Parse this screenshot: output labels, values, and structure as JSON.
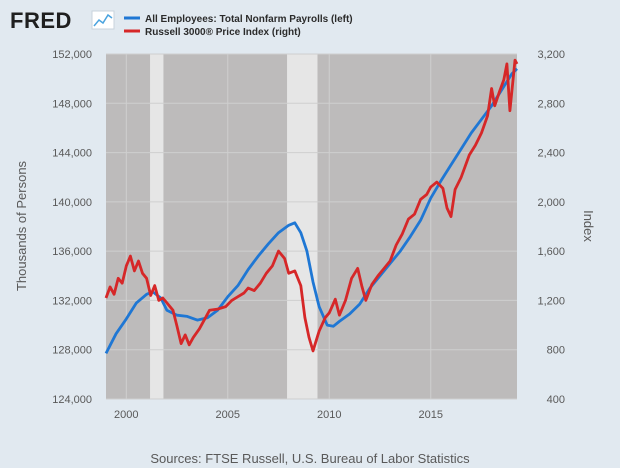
{
  "logo": {
    "text": "FRED"
  },
  "chart_data": {
    "type": "line",
    "title": "",
    "x_range": [
      1999.0,
      2019.25
    ],
    "x_ticks": [
      2000,
      2005,
      2010,
      2015
    ],
    "x_tick_labels": [
      "2000",
      "2005",
      "2010",
      "2015"
    ],
    "recessions": [
      [
        2001.17,
        2001.83
      ],
      [
        2007.92,
        2009.42
      ]
    ],
    "grid": true,
    "legend_position": "top-left",
    "left_axis": {
      "label": "Thousands of Persons",
      "range": [
        124000,
        152000
      ],
      "ticks": [
        124000,
        128000,
        132000,
        136000,
        140000,
        144000,
        148000,
        152000
      ],
      "tick_labels": [
        "124,000",
        "128,000",
        "132,000",
        "136,000",
        "140,000",
        "144,000",
        "148,000",
        "152,000"
      ]
    },
    "right_axis": {
      "label": "Index",
      "range": [
        400,
        3200
      ],
      "ticks": [
        400,
        800,
        1200,
        1600,
        2000,
        2400,
        2800,
        3200
      ],
      "tick_labels": [
        "400",
        "800",
        "1,200",
        "1,600",
        "2,000",
        "2,400",
        "2,800",
        "3,200"
      ]
    },
    "series": [
      {
        "name": "All Employees: Total Nonfarm Payrolls (left)",
        "color": "#1f77d4",
        "axis": "left",
        "points": [
          [
            1999.0,
            127700
          ],
          [
            1999.5,
            129300
          ],
          [
            2000.0,
            130500
          ],
          [
            2000.5,
            131800
          ],
          [
            2001.0,
            132500
          ],
          [
            2001.3,
            132700
          ],
          [
            2001.7,
            132200
          ],
          [
            2002.0,
            131200
          ],
          [
            2002.5,
            130800
          ],
          [
            2003.0,
            130700
          ],
          [
            2003.5,
            130400
          ],
          [
            2004.0,
            130600
          ],
          [
            2004.5,
            131200
          ],
          [
            2005.0,
            132300
          ],
          [
            2005.5,
            133200
          ],
          [
            2006.0,
            134500
          ],
          [
            2006.5,
            135600
          ],
          [
            2007.0,
            136600
          ],
          [
            2007.5,
            137500
          ],
          [
            2008.0,
            138100
          ],
          [
            2008.3,
            138300
          ],
          [
            2008.6,
            137500
          ],
          [
            2008.9,
            136000
          ],
          [
            2009.2,
            133500
          ],
          [
            2009.5,
            131500
          ],
          [
            2009.9,
            130000
          ],
          [
            2010.2,
            129900
          ],
          [
            2010.5,
            130300
          ],
          [
            2011.0,
            130900
          ],
          [
            2011.5,
            131700
          ],
          [
            2012.0,
            133000
          ],
          [
            2012.5,
            134000
          ],
          [
            2013.0,
            135000
          ],
          [
            2013.5,
            136000
          ],
          [
            2014.0,
            137200
          ],
          [
            2014.5,
            138500
          ],
          [
            2015.0,
            140300
          ],
          [
            2015.5,
            141700
          ],
          [
            2016.0,
            143000
          ],
          [
            2016.5,
            144300
          ],
          [
            2017.0,
            145600
          ],
          [
            2017.5,
            146700
          ],
          [
            2018.0,
            147800
          ],
          [
            2018.5,
            149100
          ],
          [
            2019.0,
            150400
          ],
          [
            2019.25,
            150800
          ]
        ]
      },
      {
        "name": "Russell 3000® Price Index (right)",
        "color": "#d62728",
        "axis": "right",
        "points": [
          [
            1999.0,
            1220
          ],
          [
            1999.2,
            1310
          ],
          [
            1999.4,
            1250
          ],
          [
            1999.6,
            1380
          ],
          [
            1999.8,
            1340
          ],
          [
            2000.0,
            1480
          ],
          [
            2000.2,
            1560
          ],
          [
            2000.4,
            1440
          ],
          [
            2000.6,
            1520
          ],
          [
            2000.8,
            1420
          ],
          [
            2001.0,
            1380
          ],
          [
            2001.2,
            1240
          ],
          [
            2001.4,
            1320
          ],
          [
            2001.6,
            1200
          ],
          [
            2001.8,
            1220
          ],
          [
            2002.0,
            1180
          ],
          [
            2002.3,
            1120
          ],
          [
            2002.5,
            990
          ],
          [
            2002.7,
            850
          ],
          [
            2002.9,
            920
          ],
          [
            2003.1,
            840
          ],
          [
            2003.3,
            900
          ],
          [
            2003.6,
            970
          ],
          [
            2003.9,
            1060
          ],
          [
            2004.1,
            1120
          ],
          [
            2004.5,
            1130
          ],
          [
            2004.9,
            1150
          ],
          [
            2005.2,
            1200
          ],
          [
            2005.5,
            1230
          ],
          [
            2005.8,
            1260
          ],
          [
            2006.0,
            1300
          ],
          [
            2006.3,
            1280
          ],
          [
            2006.6,
            1340
          ],
          [
            2006.9,
            1420
          ],
          [
            2007.2,
            1480
          ],
          [
            2007.5,
            1600
          ],
          [
            2007.8,
            1540
          ],
          [
            2008.0,
            1420
          ],
          [
            2008.3,
            1440
          ],
          [
            2008.6,
            1320
          ],
          [
            2008.8,
            1060
          ],
          [
            2009.0,
            900
          ],
          [
            2009.2,
            790
          ],
          [
            2009.5,
            950
          ],
          [
            2009.8,
            1060
          ],
          [
            2010.0,
            1100
          ],
          [
            2010.3,
            1210
          ],
          [
            2010.5,
            1080
          ],
          [
            2010.8,
            1200
          ],
          [
            2011.1,
            1380
          ],
          [
            2011.4,
            1460
          ],
          [
            2011.6,
            1320
          ],
          [
            2011.8,
            1200
          ],
          [
            2012.1,
            1330
          ],
          [
            2012.4,
            1400
          ],
          [
            2012.7,
            1460
          ],
          [
            2013.0,
            1520
          ],
          [
            2013.3,
            1650
          ],
          [
            2013.6,
            1740
          ],
          [
            2013.9,
            1860
          ],
          [
            2014.2,
            1900
          ],
          [
            2014.5,
            2020
          ],
          [
            2014.8,
            2060
          ],
          [
            2015.0,
            2120
          ],
          [
            2015.3,
            2160
          ],
          [
            2015.6,
            2110
          ],
          [
            2015.8,
            1950
          ],
          [
            2016.0,
            1880
          ],
          [
            2016.2,
            2100
          ],
          [
            2016.5,
            2200
          ],
          [
            2016.9,
            2380
          ],
          [
            2017.2,
            2460
          ],
          [
            2017.5,
            2560
          ],
          [
            2017.8,
            2700
          ],
          [
            2018.0,
            2920
          ],
          [
            2018.15,
            2780
          ],
          [
            2018.4,
            2900
          ],
          [
            2018.6,
            2990
          ],
          [
            2018.75,
            3120
          ],
          [
            2018.9,
            2740
          ],
          [
            2019.05,
            2980
          ],
          [
            2019.15,
            3150
          ],
          [
            2019.25,
            3120
          ]
        ]
      }
    ]
  },
  "footer": {
    "sources": "Sources: FTSE Russell, U.S. Bureau of Labor Statistics"
  }
}
